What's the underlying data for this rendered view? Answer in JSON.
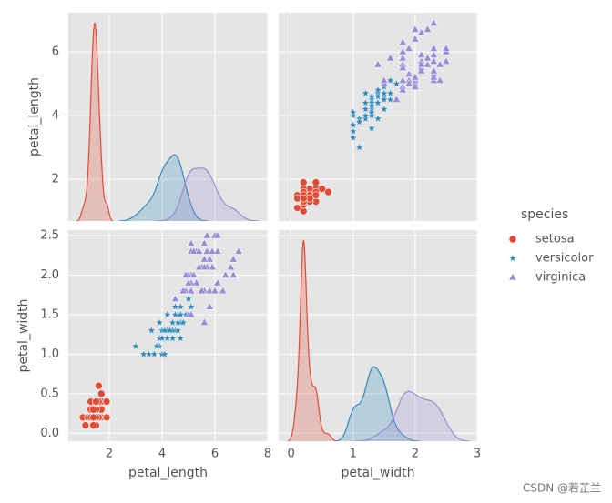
{
  "chart_data": {
    "type": "pairplot",
    "variables": [
      "petal_length",
      "petal_width"
    ],
    "axes": [
      {
        "xlim": [
          0.45,
          8.0
        ],
        "xticks": [
          2,
          4,
          6,
          8
        ],
        "ylim": [
          0.69,
          7.23
        ],
        "yticks": [
          2,
          4,
          6
        ]
      },
      {
        "xlim": [
          -0.2,
          3.0
        ],
        "xticks": [
          0,
          1,
          2,
          3
        ],
        "ylim": [
          -0.1,
          2.57
        ],
        "yticks": [
          {
            "value": 0,
            "label": "0.0"
          },
          0.5,
          {
            "value": 1,
            "label": "1.0"
          },
          1.5,
          {
            "value": 2,
            "label": "2.0"
          },
          2.5
        ]
      }
    ],
    "grid": true,
    "legend_title": "species",
    "legend_position": "right",
    "series": [
      {
        "name": "setosa",
        "color": "#E24A33",
        "marker": "circle",
        "values": [
          [
            1.4,
            1.4,
            1.3,
            1.5,
            1.4,
            1.7,
            1.4,
            1.5,
            1.4,
            1.5,
            1.5,
            1.6,
            1.4,
            1.1,
            1.2,
            1.5,
            1.3,
            1.4,
            1.7,
            1.5,
            1.7,
            1.5,
            1.0,
            1.7,
            1.9,
            1.6,
            1.6,
            1.5,
            1.4,
            1.6,
            1.6,
            1.5,
            1.5,
            1.4,
            1.5,
            1.2,
            1.3,
            1.4,
            1.3,
            1.5,
            1.3,
            1.3,
            1.3,
            1.6,
            1.9,
            1.4,
            1.6,
            1.4,
            1.5,
            1.4
          ],
          [
            0.2,
            0.2,
            0.2,
            0.2,
            0.2,
            0.4,
            0.3,
            0.2,
            0.2,
            0.1,
            0.2,
            0.2,
            0.1,
            0.1,
            0.2,
            0.4,
            0.4,
            0.3,
            0.3,
            0.3,
            0.2,
            0.4,
            0.2,
            0.5,
            0.2,
            0.2,
            0.4,
            0.2,
            0.2,
            0.2,
            0.2,
            0.4,
            0.1,
            0.2,
            0.2,
            0.2,
            0.2,
            0.1,
            0.2,
            0.2,
            0.3,
            0.3,
            0.2,
            0.6,
            0.4,
            0.3,
            0.2,
            0.2,
            0.2,
            0.2
          ]
        ]
      },
      {
        "name": "versicolor",
        "color": "#348ABD",
        "marker": "star",
        "values": [
          [
            4.7,
            4.5,
            4.9,
            4.0,
            4.6,
            4.5,
            4.7,
            3.3,
            4.6,
            3.9,
            3.5,
            4.2,
            4.0,
            4.7,
            3.6,
            4.4,
            4.5,
            4.1,
            4.5,
            3.9,
            4.8,
            4.0,
            4.9,
            4.7,
            4.3,
            4.4,
            4.8,
            5.0,
            4.5,
            3.5,
            3.8,
            3.7,
            3.9,
            5.1,
            4.5,
            4.5,
            4.7,
            4.4,
            4.1,
            4.0,
            4.4,
            4.6,
            4.0,
            3.3,
            4.2,
            4.2,
            4.2,
            4.3,
            3.0,
            4.1
          ],
          [
            1.4,
            1.5,
            1.5,
            1.3,
            1.5,
            1.3,
            1.6,
            1.0,
            1.3,
            1.4,
            1.0,
            1.5,
            1.0,
            1.4,
            1.3,
            1.4,
            1.5,
            1.0,
            1.5,
            1.1,
            1.8,
            1.3,
            1.5,
            1.2,
            1.3,
            1.4,
            1.4,
            1.7,
            1.5,
            1.0,
            1.1,
            1.0,
            1.2,
            1.6,
            1.5,
            1.6,
            1.5,
            1.3,
            1.3,
            1.3,
            1.2,
            1.4,
            1.2,
            1.0,
            1.3,
            1.2,
            1.3,
            1.3,
            1.1,
            1.3
          ]
        ]
      },
      {
        "name": "virginica",
        "color": "#988ED5",
        "marker": "triangle",
        "values": [
          [
            6.0,
            5.1,
            5.9,
            5.6,
            5.8,
            6.6,
            4.5,
            6.3,
            5.8,
            6.1,
            5.1,
            5.3,
            5.5,
            5.0,
            5.1,
            5.3,
            5.5,
            6.7,
            6.9,
            5.0,
            5.7,
            4.9,
            6.7,
            4.9,
            5.7,
            6.0,
            4.8,
            4.9,
            5.6,
            5.8,
            6.1,
            6.4,
            5.6,
            5.1,
            5.6,
            6.1,
            5.6,
            5.5,
            4.8,
            5.4,
            5.6,
            5.1,
            5.1,
            5.9,
            5.7,
            5.2,
            5.0,
            5.2,
            5.4,
            5.1
          ],
          [
            2.5,
            1.9,
            2.1,
            1.8,
            2.2,
            2.1,
            1.7,
            1.8,
            1.8,
            2.5,
            2.0,
            1.9,
            2.1,
            2.0,
            2.4,
            2.3,
            1.8,
            2.2,
            2.3,
            1.5,
            2.3,
            2.0,
            2.0,
            1.8,
            2.1,
            1.8,
            1.8,
            1.8,
            2.1,
            1.6,
            1.9,
            2.0,
            2.2,
            1.5,
            1.4,
            2.3,
            2.4,
            1.8,
            1.8,
            2.1,
            2.4,
            2.3,
            1.9,
            2.3,
            2.5,
            2.3,
            1.9,
            2.0,
            2.3,
            1.8
          ]
        ]
      }
    ]
  },
  "watermark": "CSDN @若芷兰"
}
